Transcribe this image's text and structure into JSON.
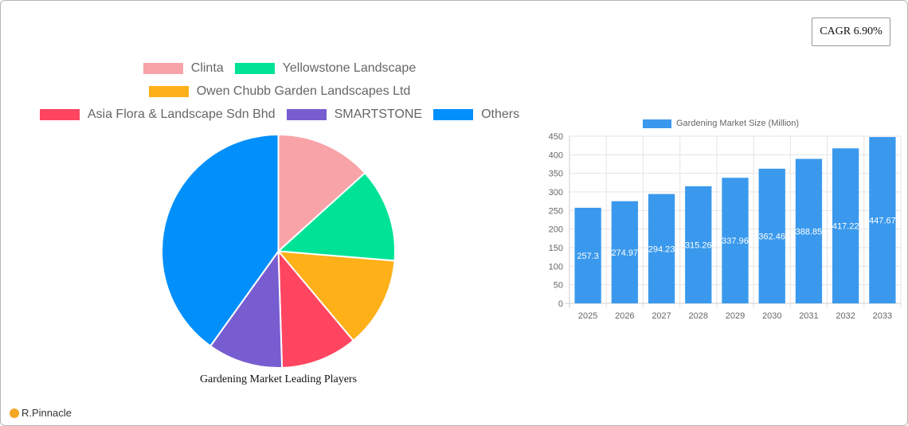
{
  "cagr": {
    "label": "CAGR 6.90%"
  },
  "logo": {
    "text": "R.Pinnacle"
  },
  "chart_data": [
    {
      "type": "pie",
      "title": "Gardening Market Leading Players",
      "legend_position": "top",
      "categories": [
        "Clinta",
        "Yellowstone Landscape",
        "Owen Chubb Garden Landscapes Ltd",
        "Asia Flora & Landscape Sdn Bhd",
        "SMARTSTONE",
        "Others"
      ],
      "values": [
        13.3,
        13.0,
        12.6,
        10.6,
        10.4,
        40.1
      ],
      "colors": [
        "#f8a3a8",
        "#00e396",
        "#feb019",
        "#ff4560",
        "#775dd0",
        "#008ffb"
      ]
    },
    {
      "type": "bar",
      "title": "",
      "legend": [
        "Gardening Market Size (Million)"
      ],
      "categories": [
        "2025",
        "2026",
        "2027",
        "2028",
        "2029",
        "2030",
        "2031",
        "2032",
        "2033"
      ],
      "series": [
        {
          "name": "Gardening Market Size (Million)",
          "values": [
            257.3,
            274.97,
            294.23,
            315.26,
            337.96,
            362.46,
            388.85,
            417.22,
            447.67
          ]
        }
      ],
      "data_labels": [
        "257.3",
        "274.97",
        "294.23",
        "315.26",
        "337.96",
        "362.46",
        "388.85",
        "417.22",
        "447.67"
      ],
      "yticks": [
        0,
        50,
        100,
        150,
        200,
        250,
        300,
        350,
        400,
        450
      ],
      "ylim": [
        0,
        450
      ],
      "grid": true,
      "color": "#3a99ec",
      "xlabel": "",
      "ylabel": ""
    }
  ]
}
